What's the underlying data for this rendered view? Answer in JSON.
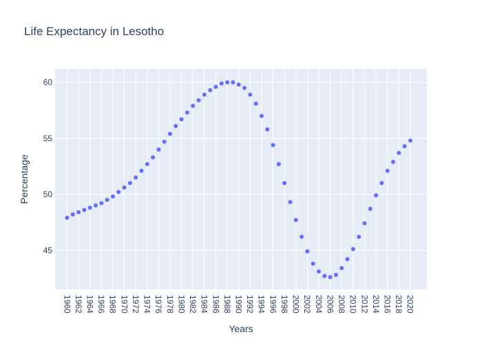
{
  "chart_data": {
    "type": "scatter",
    "title": "Life Expectancy in Lesotho",
    "xlabel": "Years",
    "ylabel": "Percentage",
    "x": [
      1960,
      1961,
      1962,
      1963,
      1964,
      1965,
      1966,
      1967,
      1968,
      1969,
      1970,
      1971,
      1972,
      1973,
      1974,
      1975,
      1976,
      1977,
      1978,
      1979,
      1980,
      1981,
      1982,
      1983,
      1984,
      1985,
      1986,
      1987,
      1988,
      1989,
      1990,
      1991,
      1992,
      1993,
      1994,
      1995,
      1996,
      1997,
      1998,
      1999,
      2000,
      2001,
      2002,
      2003,
      2004,
      2005,
      2006,
      2007,
      2008,
      2009,
      2010,
      2011,
      2012,
      2013,
      2014,
      2015,
      2016,
      2017,
      2018,
      2019,
      2020
    ],
    "y": [
      47.9,
      48.2,
      48.4,
      48.6,
      48.8,
      49.0,
      49.2,
      49.5,
      49.8,
      50.2,
      50.6,
      51.0,
      51.5,
      52.1,
      52.7,
      53.3,
      54.0,
      54.7,
      55.4,
      56.1,
      56.7,
      57.3,
      57.9,
      58.4,
      58.9,
      59.3,
      59.6,
      59.9,
      60.0,
      60.0,
      59.8,
      59.5,
      58.9,
      58.1,
      57.0,
      55.8,
      54.4,
      52.7,
      51.0,
      49.3,
      47.7,
      46.2,
      44.9,
      43.8,
      43.1,
      42.7,
      42.6,
      42.8,
      43.4,
      44.2,
      45.1,
      46.2,
      47.4,
      48.7,
      49.9,
      51.0,
      52.1,
      52.9,
      53.7,
      54.3,
      54.8
    ],
    "x_ticks": [
      1960,
      1962,
      1964,
      1966,
      1968,
      1970,
      1972,
      1974,
      1976,
      1978,
      1980,
      1982,
      1984,
      1986,
      1988,
      1990,
      1992,
      1994,
      1996,
      1998,
      2000,
      2002,
      2004,
      2006,
      2008,
      2010,
      2012,
      2014,
      2016,
      2018,
      2020
    ],
    "y_ticks": [
      45,
      50,
      55,
      60
    ],
    "xlim": [
      1957.9,
      2022.9
    ],
    "ylim": [
      41.5,
      61.2
    ],
    "grid": true,
    "colors": {
      "marker": "#636efa",
      "plot_bg": "#e5ecf6",
      "grid": "#ffffff",
      "text": "#2a3f5f"
    }
  }
}
